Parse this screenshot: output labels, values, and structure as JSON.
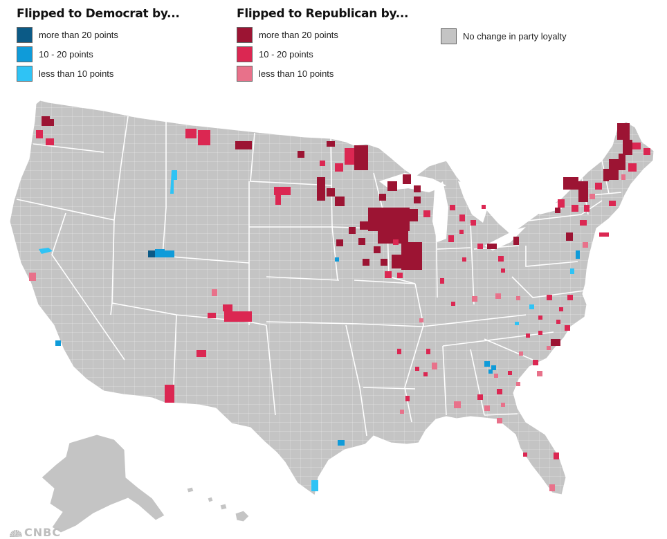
{
  "legend": {
    "dem_title": "Flipped to Democrat by...",
    "rep_title": "Flipped to Republican by...",
    "dem": [
      {
        "label": "more than 20 points",
        "color": "#0b5a86"
      },
      {
        "label": "10 - 20 points",
        "color": "#0f9bd9"
      },
      {
        "label": "less than 10 points",
        "color": "#2fc3f5"
      }
    ],
    "rep": [
      {
        "label": "more than 20 points",
        "color": "#9c1433"
      },
      {
        "label": "10 - 20 points",
        "color": "#db2752"
      },
      {
        "label": "less than 10 points",
        "color": "#e8718a"
      }
    ],
    "none": {
      "label": "No change in party loyalty",
      "color": "#c4c4c4"
    }
  },
  "map": {
    "land_color": "#c4c4c4",
    "border_color": "#ffffff",
    "subject": "US counties that flipped party loyalty"
  },
  "watermark": {
    "text": "CNBC",
    "icon": "peacock-logo-icon"
  }
}
